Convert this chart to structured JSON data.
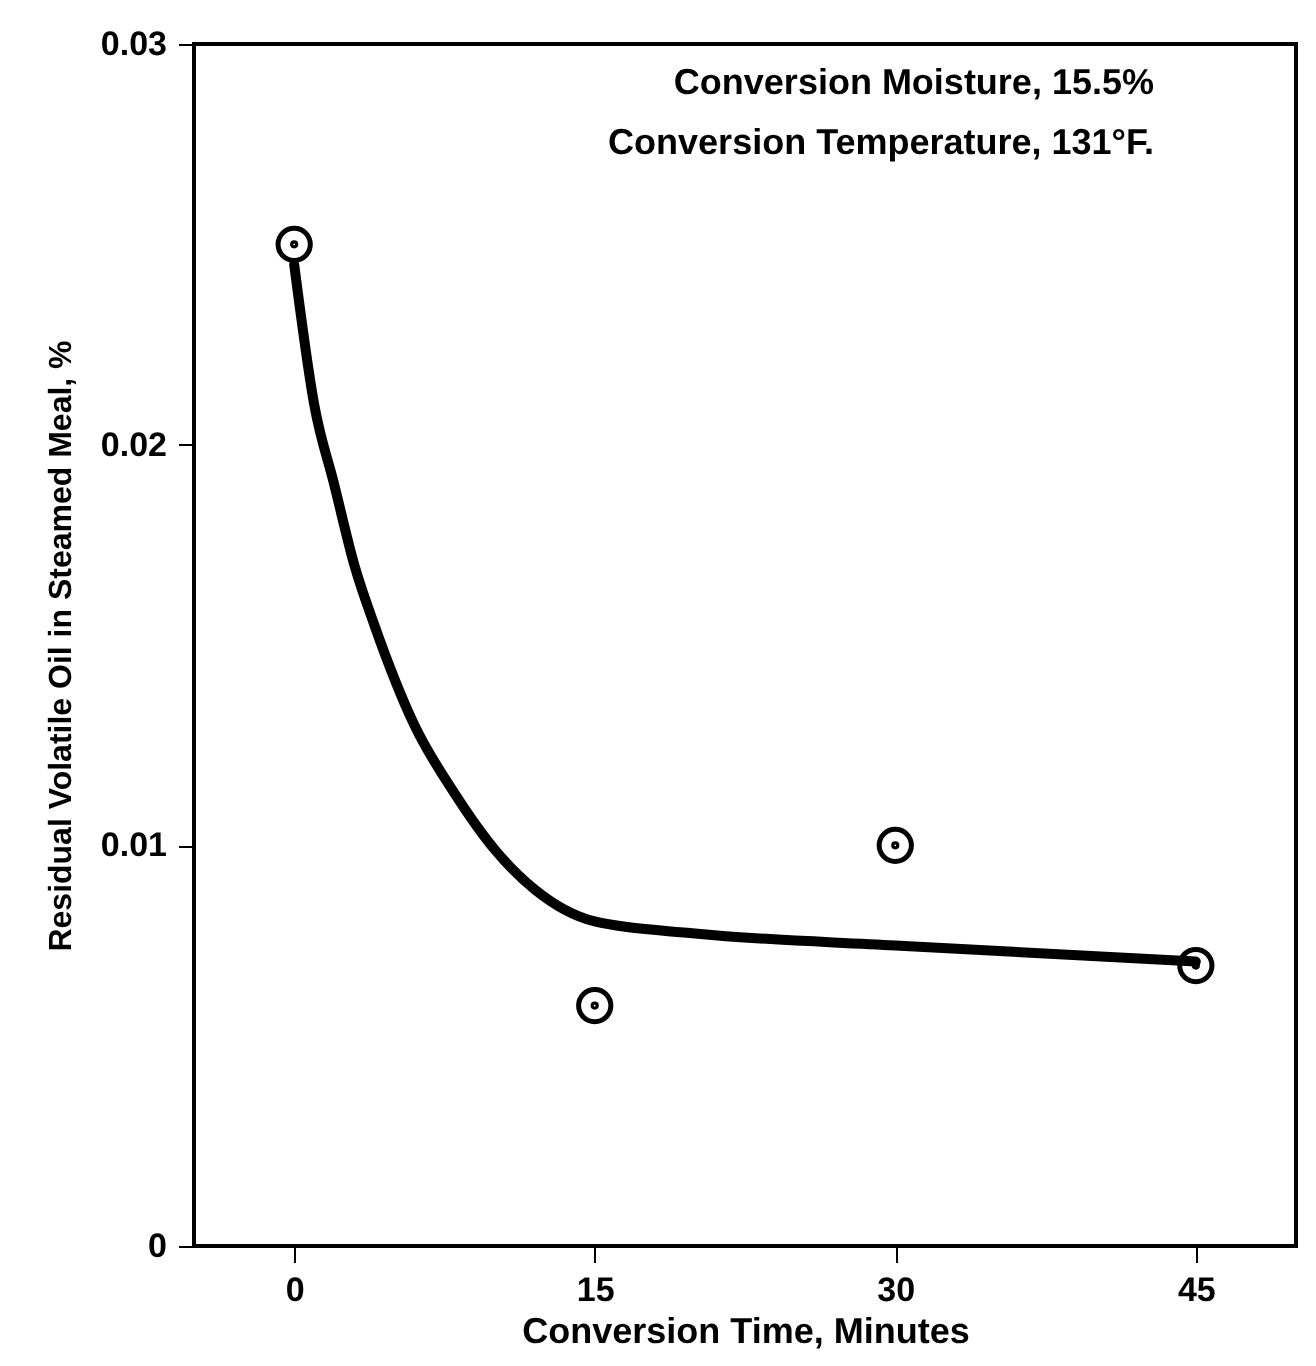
{
  "chart_data": {
    "type": "scatter",
    "xlabel": "Conversion Time, Minutes",
    "ylabel": "Residual Volatile Oil in Steamed Meal, %",
    "annotations": [
      "Conversion Moisture, 15.5%",
      "Conversion Temperature, 131°F."
    ],
    "xlim": [
      -5,
      50
    ],
    "ylim": [
      0,
      0.03
    ],
    "xticks": [
      0,
      15,
      30,
      45
    ],
    "yticks": [
      0,
      0.01,
      0.02,
      0.03
    ],
    "grid": false,
    "series": [
      {
        "color": "#000000",
        "marker": "circle",
        "x": [
          0,
          15,
          30,
          45
        ],
        "values": [
          0.025,
          0.006,
          0.01,
          0.007
        ]
      },
      {
        "type": "line",
        "marker": "none",
        "color": "#000000",
        "x": [
          0,
          1,
          2,
          3,
          4,
          6,
          8,
          10,
          12,
          15,
          20,
          30,
          45
        ],
        "values": [
          0.0245,
          0.021,
          0.019,
          0.017,
          0.0155,
          0.013,
          0.0113,
          0.0099,
          0.0089,
          0.0081,
          0.0078,
          0.0075,
          0.0071
        ]
      }
    ]
  }
}
